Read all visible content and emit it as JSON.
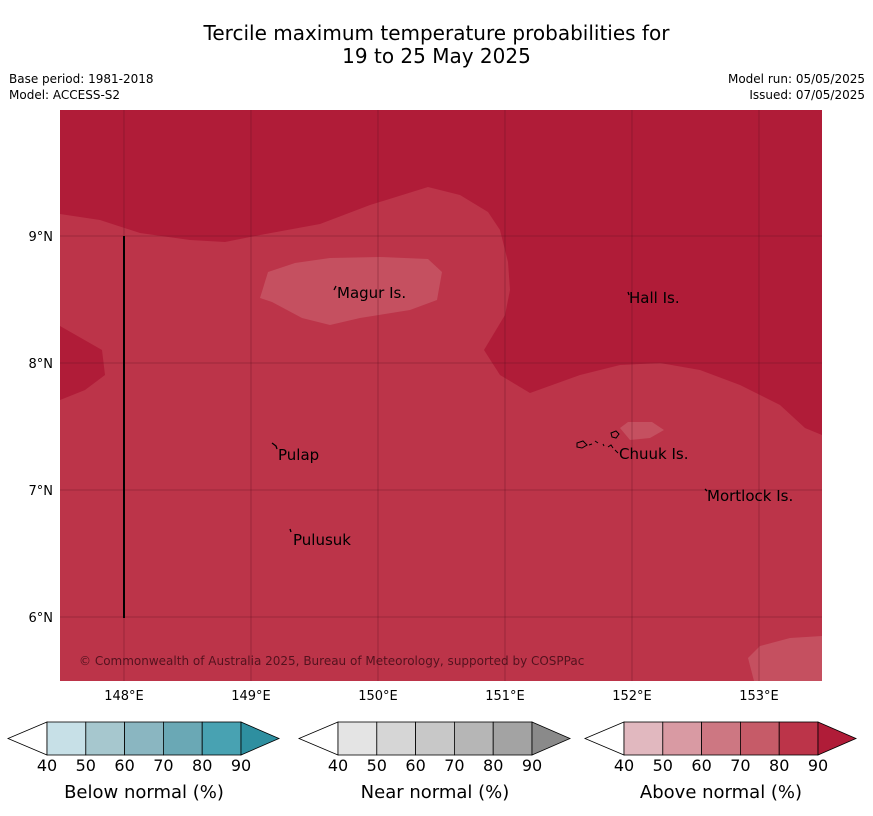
{
  "title_line1": "Tercile maximum temperature probabilities for",
  "title_line2": "19 to 25 May 2025",
  "meta": {
    "base_period": "Base period: 1981-2018",
    "model": "Model: ACCESS-S2",
    "model_run": "Model run: 05/05/2025",
    "issued": "Issued: 07/05/2025"
  },
  "map": {
    "lat_labels": [
      "9°N",
      "8°N",
      "7°N",
      "6°N"
    ],
    "lon_labels": [
      "148°E",
      "149°E",
      "150°E",
      "151°E",
      "152°E",
      "153°E"
    ],
    "places": [
      "Magur Is.",
      "Hall Is.",
      "Pulap",
      "Chuuk Is.",
      "Mortlock Is.",
      "Pulusuk"
    ],
    "copyright": "© Commonwealth of Australia 2025, Bureau of Meteorology, supported by COSPPac",
    "colors": {
      "above_80_90": "#b01c38",
      "above_70_80": "#bc3449",
      "above_60_70": "#c55060"
    }
  },
  "legends": [
    {
      "label": "Below normal (%)",
      "ticks": [
        "40",
        "50",
        "60",
        "70",
        "80",
        "90"
      ],
      "colors": [
        "#c7e0e7",
        "#a6c7ce",
        "#8ab6c1",
        "#6aa8b5",
        "#48a2b2",
        "#2e8fa0"
      ]
    },
    {
      "label": "Near normal (%)",
      "ticks": [
        "40",
        "50",
        "60",
        "70",
        "80",
        "90"
      ],
      "colors": [
        "#e4e4e4",
        "#d6d6d6",
        "#c8c8c8",
        "#b6b6b6",
        "#a3a3a3",
        "#8a8a8a"
      ]
    },
    {
      "label": "Above normal (%)",
      "ticks": [
        "40",
        "50",
        "60",
        "70",
        "80",
        "90"
      ],
      "colors": [
        "#e1b8bf",
        "#d99aa3",
        "#cd7782",
        "#c65b68",
        "#bc3449",
        "#b01c38"
      ]
    }
  ]
}
